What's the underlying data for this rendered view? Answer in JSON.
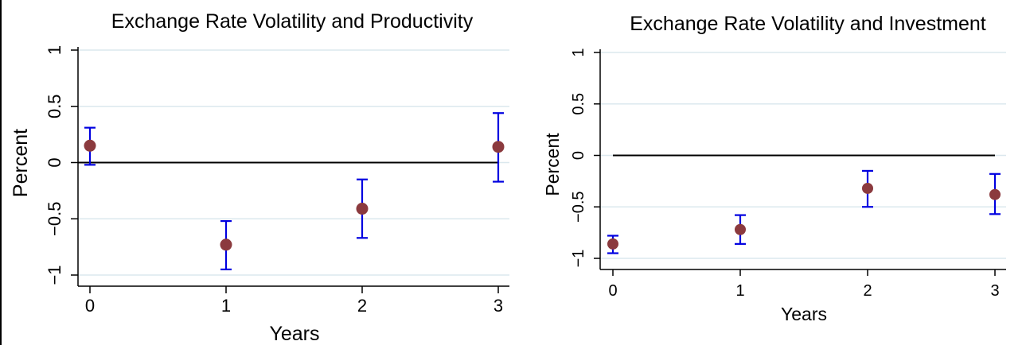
{
  "chart_data": [
    {
      "type": "scatter",
      "title": "Exchange Rate Volatility and Productivity",
      "xlabel": "Years",
      "ylabel": "Percent",
      "x": [
        0,
        1,
        2,
        3
      ],
      "xticks": [
        "0",
        "1",
        "2",
        "3"
      ],
      "yticks": [
        1,
        0.5,
        0,
        -0.5,
        -1
      ],
      "yticklabels": [
        "1",
        "0.5",
        "0",
        "−0.5",
        "−1"
      ],
      "xlim": [
        -0.05,
        3.05
      ],
      "ylim": [
        -1.1,
        1.1
      ],
      "grid": true,
      "reference_line": 0,
      "series": [
        {
          "values": [
            0.15,
            -0.73,
            -0.41,
            0.14
          ],
          "lower": [
            -0.02,
            -0.95,
            -0.67,
            -0.17
          ],
          "upper": [
            0.31,
            -0.52,
            -0.15,
            0.44
          ]
        }
      ],
      "colors": {
        "point": "#8b3a3e",
        "errorbar": "#0000e0",
        "grid": "#dbe8ee",
        "zero_line": "#000000"
      }
    },
    {
      "type": "scatter",
      "title": "Exchange Rate Volatility and Investment",
      "xlabel": "Years",
      "ylabel": "Percent",
      "x": [
        0,
        1,
        2,
        3
      ],
      "xticks": [
        "0",
        "1",
        "2",
        "3"
      ],
      "yticks": [
        1,
        0.5,
        0,
        -0.5,
        -1
      ],
      "yticklabels": [
        "1",
        "0.5",
        "0",
        "−0.5",
        "−1"
      ],
      "xlim": [
        -0.05,
        3.05
      ],
      "ylim": [
        -1.1,
        1.1
      ],
      "grid": true,
      "reference_line": 0,
      "series": [
        {
          "values": [
            -0.86,
            -0.72,
            -0.32,
            -0.38
          ],
          "lower": [
            -0.95,
            -0.86,
            -0.5,
            -0.57
          ],
          "upper": [
            -0.78,
            -0.58,
            -0.15,
            -0.18
          ]
        }
      ],
      "colors": {
        "point": "#8b3a3e",
        "errorbar": "#0000e0",
        "grid": "#dbe8ee",
        "zero_line": "#000000"
      }
    }
  ]
}
